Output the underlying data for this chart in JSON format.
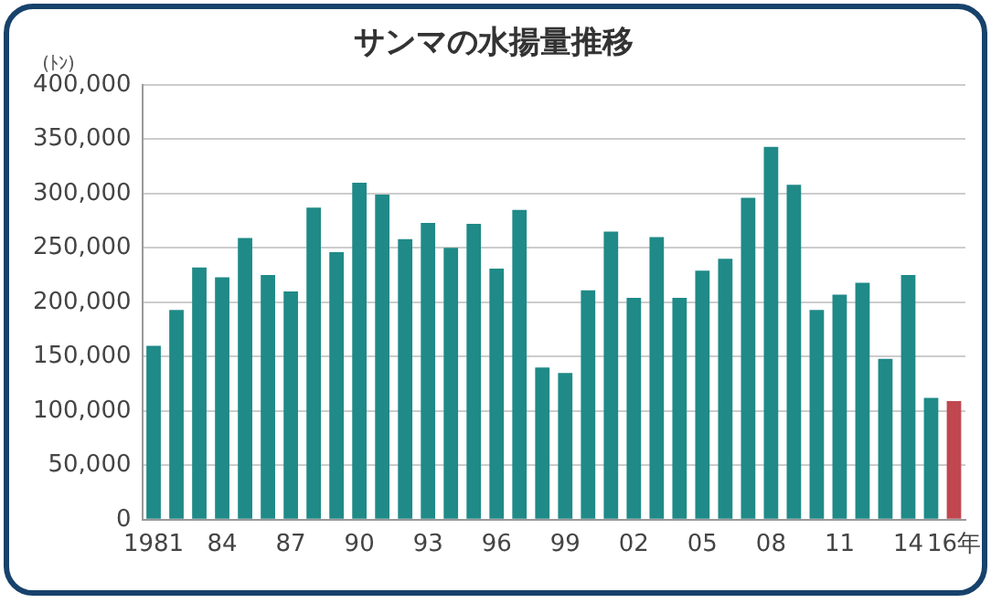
{
  "chart_data": {
    "type": "bar",
    "title": "サンマの水揚量推移",
    "ylabel": "(ﾄﾝ)",
    "categories": [
      "1981",
      null,
      null,
      "84",
      null,
      null,
      "87",
      null,
      null,
      "90",
      null,
      null,
      "93",
      null,
      null,
      "96",
      null,
      null,
      "99",
      null,
      null,
      "02",
      null,
      null,
      "05",
      null,
      null,
      "08",
      null,
      null,
      "11",
      null,
      null,
      "14",
      null,
      "16年"
    ],
    "values": [
      160000,
      193000,
      232000,
      223000,
      259000,
      225000,
      210000,
      287000,
      246000,
      310000,
      299000,
      258000,
      273000,
      250000,
      272000,
      231000,
      285000,
      140000,
      135000,
      211000,
      265000,
      204000,
      260000,
      204000,
      229000,
      240000,
      296000,
      343000,
      308000,
      193000,
      207000,
      218000,
      148000,
      225000,
      112000,
      109000
    ],
    "colors": [
      "#1f8a87",
      "#1f8a87",
      "#1f8a87",
      "#1f8a87",
      "#1f8a87",
      "#1f8a87",
      "#1f8a87",
      "#1f8a87",
      "#1f8a87",
      "#1f8a87",
      "#1f8a87",
      "#1f8a87",
      "#1f8a87",
      "#1f8a87",
      "#1f8a87",
      "#1f8a87",
      "#1f8a87",
      "#1f8a87",
      "#1f8a87",
      "#1f8a87",
      "#1f8a87",
      "#1f8a87",
      "#1f8a87",
      "#1f8a87",
      "#1f8a87",
      "#1f8a87",
      "#1f8a87",
      "#1f8a87",
      "#1f8a87",
      "#1f8a87",
      "#1f8a87",
      "#1f8a87",
      "#1f8a87",
      "#1f8a87",
      "#1f8a87",
      "#c0474f"
    ],
    "ylim": [
      0,
      400000
    ],
    "yticks": [
      0,
      {
        "value": 50000,
        "label": "50,000"
      },
      {
        "value": 100000,
        "label": "100,000"
      },
      {
        "value": 150000,
        "label": "150,000"
      },
      {
        "value": 200000,
        "label": "200,000"
      },
      {
        "value": 250000,
        "label": "250,000"
      },
      {
        "value": 300000,
        "label": "300,000"
      },
      {
        "value": 350000,
        "label": "350,000"
      },
      {
        "value": 400000,
        "label": "400,000"
      }
    ],
    "grid": "y",
    "legend": false
  }
}
